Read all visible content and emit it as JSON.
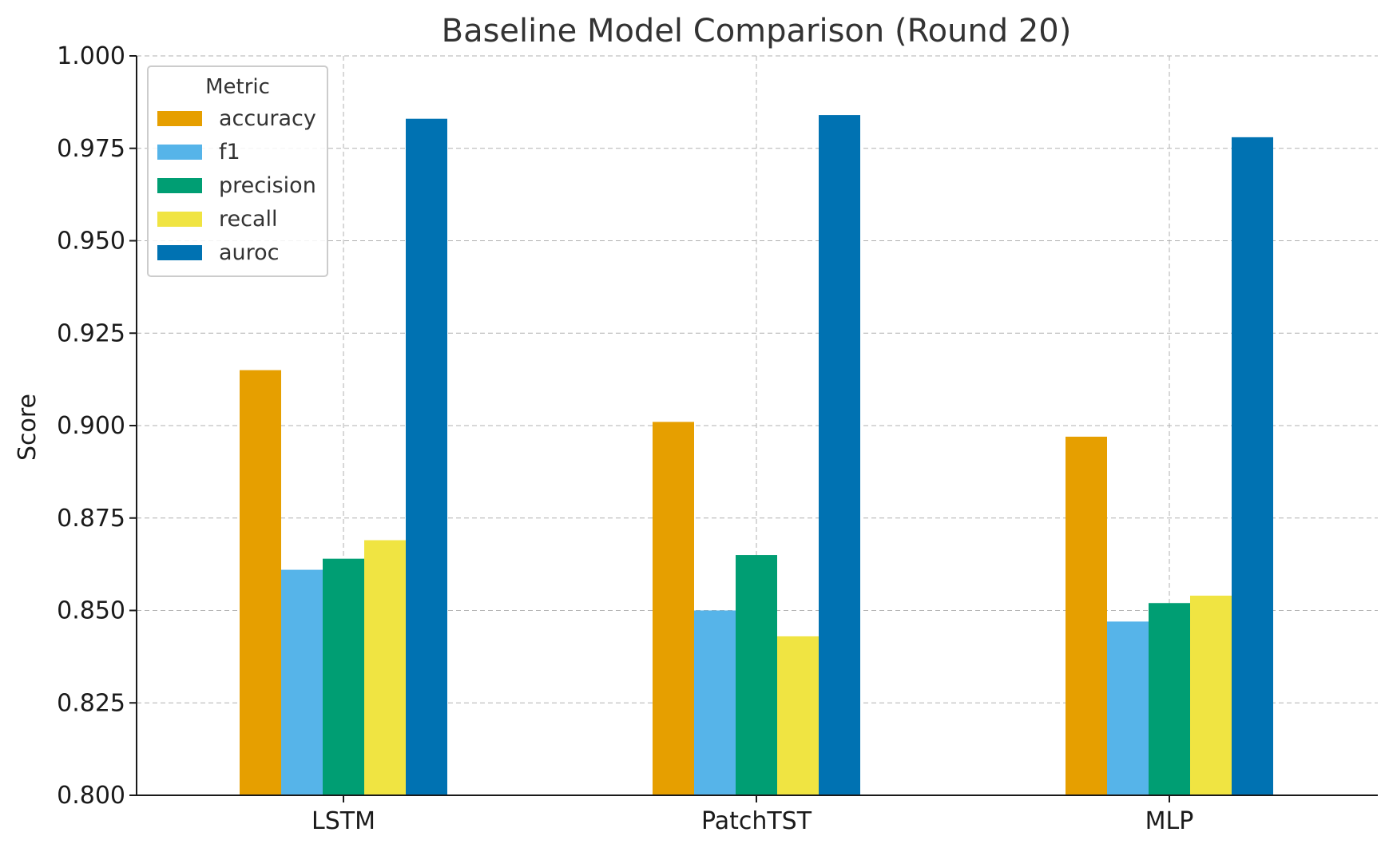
{
  "chart_data": {
    "type": "bar",
    "title": "Baseline Model Comparison (Round 20)",
    "xlabel": "",
    "ylabel": "Score",
    "ylim": [
      0.8,
      1.0
    ],
    "yticks": [
      "0.800",
      "0.825",
      "0.850",
      "0.875",
      "0.900",
      "0.925",
      "0.950",
      "0.975",
      "1.000"
    ],
    "ytick_values": [
      0.8,
      0.825,
      0.85,
      0.875,
      0.9,
      0.925,
      0.95,
      0.975,
      1.0
    ],
    "categories": [
      "LSTM",
      "PatchTST",
      "MLP"
    ],
    "grid": true,
    "legend": {
      "title": "Metric",
      "placement": "top-left"
    },
    "series": [
      {
        "name": "accuracy",
        "color": "#E69F00",
        "values": [
          0.915,
          0.901,
          0.897
        ]
      },
      {
        "name": "f1",
        "color": "#56B4E9",
        "values": [
          0.861,
          0.85,
          0.847
        ]
      },
      {
        "name": "precision",
        "color": "#009E73",
        "values": [
          0.864,
          0.865,
          0.852
        ]
      },
      {
        "name": "recall",
        "color": "#F0E442",
        "values": [
          0.869,
          0.843,
          0.854
        ]
      },
      {
        "name": "auroc",
        "color": "#0072B2",
        "values": [
          0.983,
          0.984,
          0.978
        ]
      }
    ]
  }
}
